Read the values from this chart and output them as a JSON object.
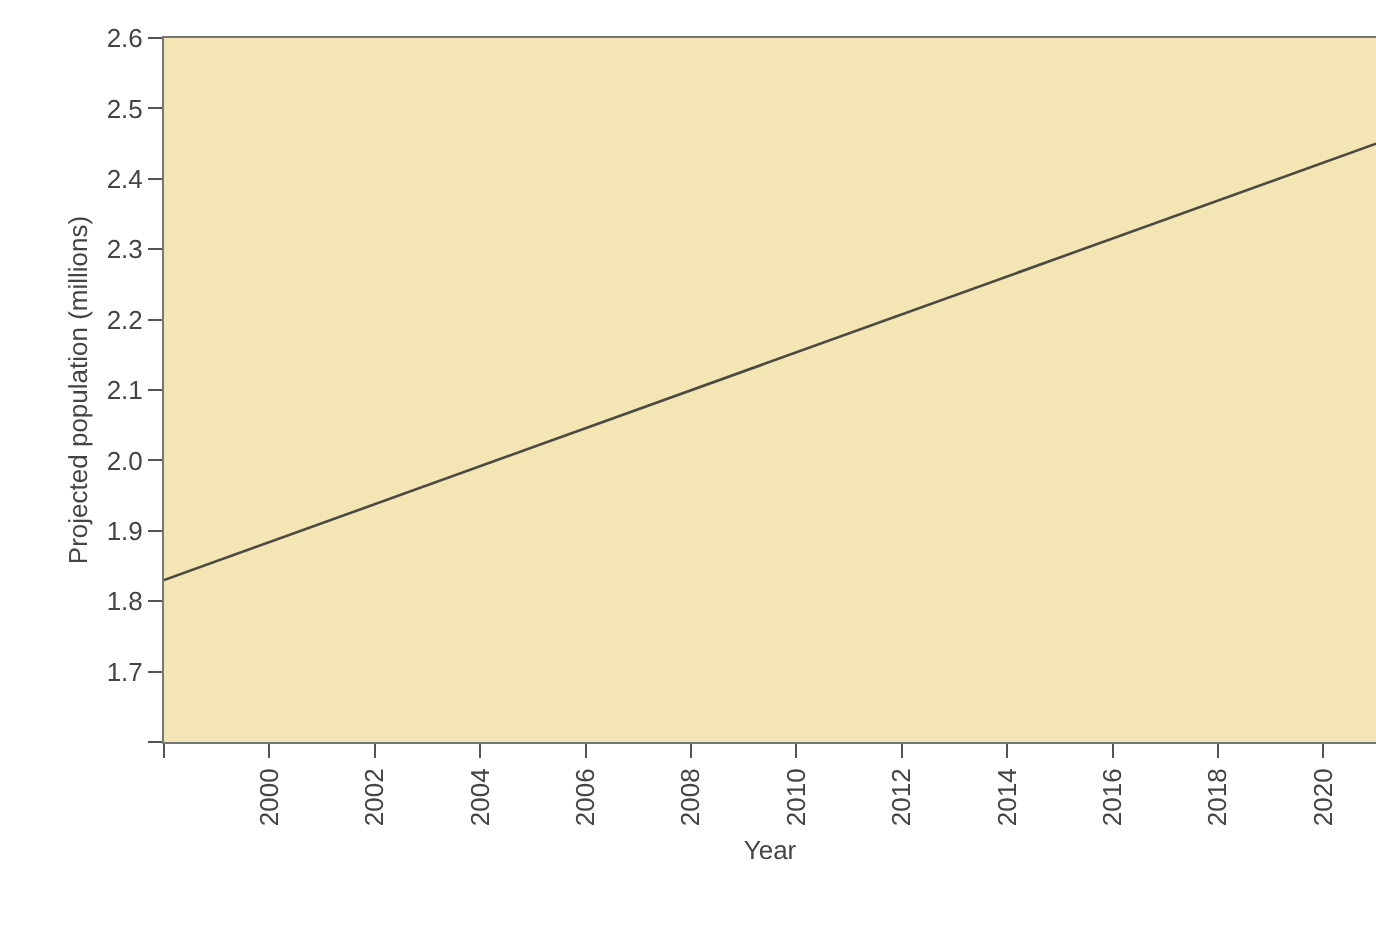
{
  "chart_data": {
    "type": "line",
    "xlabel": "Year",
    "ylabel": "Projected population (millions)",
    "x": [
      1998,
      2021
    ],
    "series": [
      {
        "color": "#4a4a42",
        "values": [
          1.83,
          2.45
        ]
      }
    ],
    "xlim": [
      1998,
      2021
    ],
    "xticks": [
      {
        "value": 1998,
        "label": null
      },
      2000,
      2002,
      2004,
      2006,
      2008,
      2010,
      2012,
      2014,
      2016,
      2018,
      2020
    ],
    "ylim": [
      1.6,
      2.6
    ],
    "yticks": [
      {
        "value": 1.6,
        "label": null
      },
      1.7,
      1.8,
      1.9,
      {
        "value": 2,
        "label": "2.0"
      },
      2.1,
      2.2,
      2.3,
      2.4,
      2.5,
      2.6
    ],
    "grid": false,
    "marker": "none",
    "line_style": "solid"
  }
}
